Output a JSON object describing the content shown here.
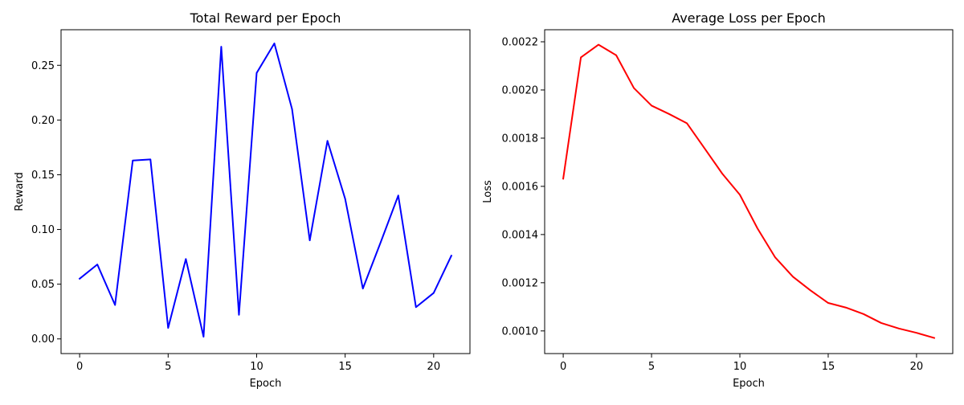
{
  "chart_data": [
    {
      "type": "line",
      "title": "Total Reward per Epoch",
      "xlabel": "Epoch",
      "ylabel": "Reward",
      "xlim": [
        -1.05,
        22.05
      ],
      "ylim": [
        -0.0134,
        0.2825
      ],
      "xticks": [
        0,
        5,
        10,
        15,
        20
      ],
      "yticks": [
        0.0,
        0.05,
        0.1,
        0.15,
        0.2,
        0.25
      ],
      "xtick_labels": [
        "0",
        "5",
        "10",
        "15",
        "20"
      ],
      "ytick_labels": [
        "0.00",
        "0.05",
        "0.10",
        "0.15",
        "0.20",
        "0.25"
      ],
      "grid": false,
      "series": [
        {
          "color": "#0000ff",
          "x": [
            0,
            1,
            2,
            3,
            4,
            5,
            6,
            7,
            8,
            9,
            10,
            11,
            12,
            13,
            14,
            15,
            16,
            17,
            18,
            19,
            20,
            21
          ],
          "y": [
            0.055,
            0.068,
            0.031,
            0.163,
            0.164,
            0.01,
            0.073,
            0.002,
            0.267,
            0.022,
            0.243,
            0.27,
            0.21,
            0.09,
            0.181,
            0.128,
            0.046,
            0.088,
            0.131,
            0.029,
            0.042,
            0.076
          ]
        }
      ]
    },
    {
      "type": "line",
      "title": "Average Loss per Epoch",
      "xlabel": "Epoch",
      "ylabel": "Loss",
      "xlim": [
        -1.05,
        22.05
      ],
      "ylim": [
        0.000906,
        0.00225
      ],
      "xticks": [
        0,
        5,
        10,
        15,
        20
      ],
      "yticks": [
        0.001,
        0.0012,
        0.0014,
        0.0016,
        0.0018,
        0.002,
        0.0022
      ],
      "xtick_labels": [
        "0",
        "5",
        "10",
        "15",
        "20"
      ],
      "ytick_labels": [
        "0.0010",
        "0.0012",
        "0.0014",
        "0.0016",
        "0.0018",
        "0.0020",
        "0.0022"
      ],
      "grid": false,
      "series": [
        {
          "color": "#ff0000",
          "x": [
            0,
            1,
            2,
            3,
            4,
            5,
            6,
            7,
            8,
            9,
            10,
            11,
            12,
            13,
            14,
            15,
            16,
            17,
            18,
            19,
            20,
            21
          ],
          "y": [
            0.001632,
            0.002135,
            0.002188,
            0.002144,
            0.002008,
            0.001935,
            0.0019,
            0.001862,
            0.001758,
            0.001653,
            0.001565,
            0.001425,
            0.001305,
            0.001225,
            0.001168,
            0.001116,
            0.001097,
            0.00107,
            0.001033,
            0.00101,
            0.000992,
            0.000971
          ]
        }
      ]
    }
  ]
}
